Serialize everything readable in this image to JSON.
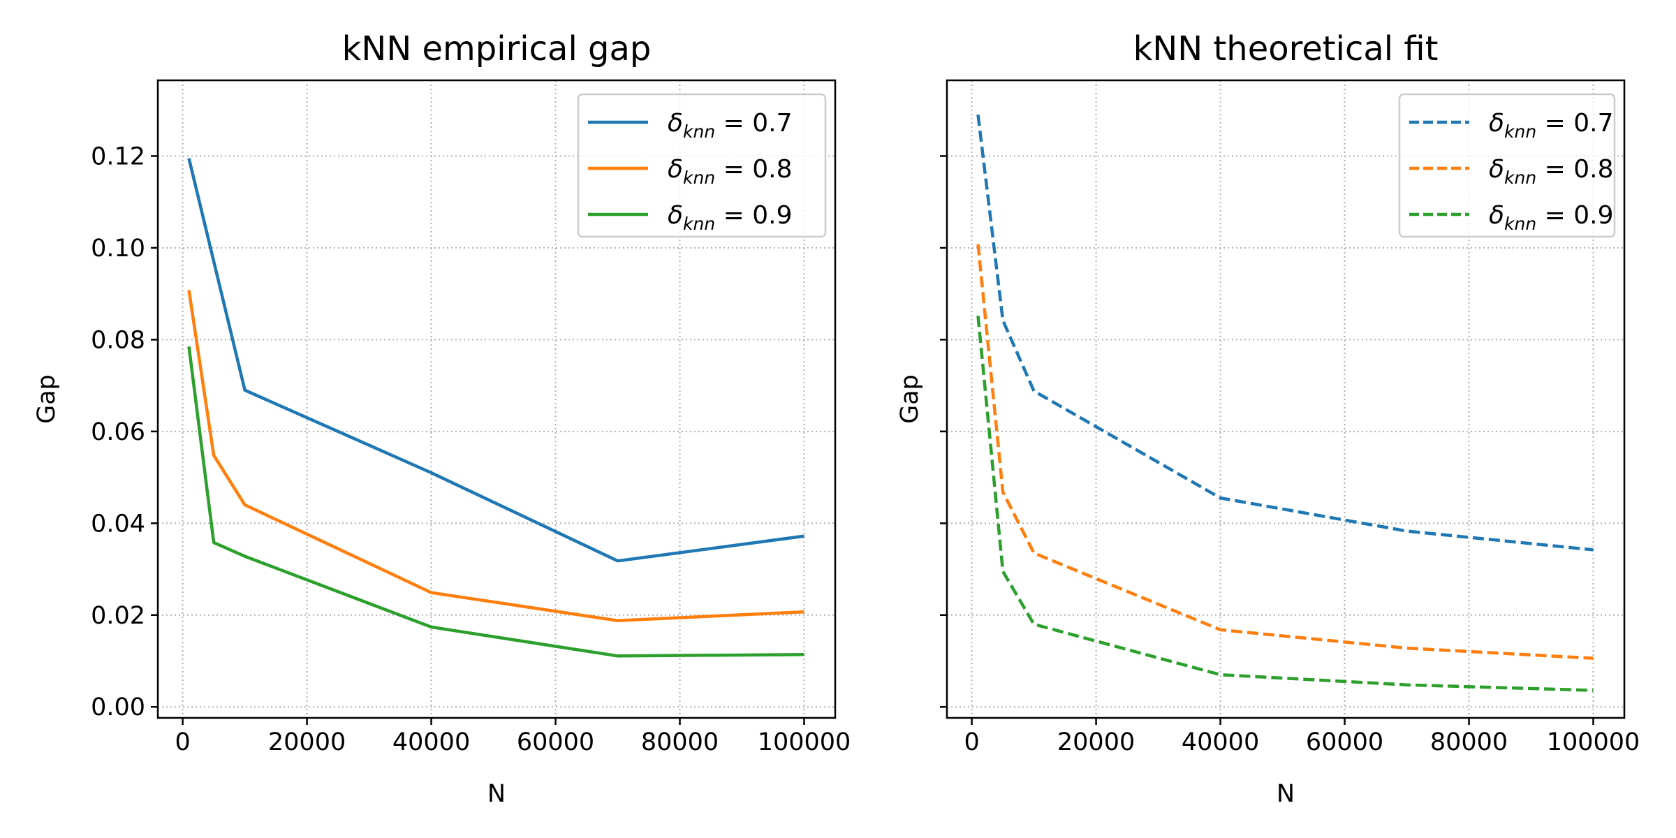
{
  "chart_data": [
    {
      "type": "line",
      "title": "kNN empirical gap",
      "xlabel": "N",
      "ylabel": "Gap",
      "xlim": [
        -4000,
        105000
      ],
      "ylim": [
        -0.0024,
        0.1365
      ],
      "x_ticks": [
        0,
        20000,
        40000,
        60000,
        80000,
        100000
      ],
      "y_ticks": [
        0.0,
        0.02,
        0.04,
        0.06,
        0.08,
        0.1,
        0.12
      ],
      "y_tick_labels": [
        "0.00",
        "0.02",
        "0.04",
        "0.06",
        "0.08",
        "0.10",
        "0.12"
      ],
      "show_y_tick_labels": true,
      "grid": true,
      "legend_position": "top-right",
      "line_style": "solid",
      "series": [
        {
          "name": "δknn = 0.7",
          "legend_symbol": "δ",
          "legend_sub": "knn",
          "legend_value": " = 0.7",
          "color": "#1f77b4",
          "x": [
            1000,
            10000,
            40000,
            70000,
            100000
          ],
          "y": [
            0.1195,
            0.069,
            0.051,
            0.0318,
            0.0372
          ]
        },
        {
          "name": "δknn = 0.8",
          "legend_symbol": "δ",
          "legend_sub": "knn",
          "legend_value": " = 0.8",
          "color": "#ff7f0e",
          "x": [
            1000,
            5000,
            10000,
            40000,
            70000,
            100000
          ],
          "y": [
            0.0908,
            0.0548,
            0.044,
            0.0249,
            0.0188,
            0.0207
          ]
        },
        {
          "name": "δknn = 0.9",
          "legend_symbol": "δ",
          "legend_sub": "knn",
          "legend_value": " = 0.9",
          "color": "#2ca02c",
          "x": [
            1000,
            5000,
            10000,
            40000,
            70000,
            100000
          ],
          "y": [
            0.0785,
            0.0358,
            0.0328,
            0.0174,
            0.0111,
            0.0114
          ]
        }
      ]
    },
    {
      "type": "line",
      "title": "kNN theoretical fit",
      "xlabel": "N",
      "ylabel": "Gap",
      "xlim": [
        -4000,
        105000
      ],
      "ylim": [
        -0.0024,
        0.1365
      ],
      "x_ticks": [
        0,
        20000,
        40000,
        60000,
        80000,
        100000
      ],
      "y_ticks": [
        0.0,
        0.02,
        0.04,
        0.06,
        0.08,
        0.1,
        0.12
      ],
      "y_tick_labels": [
        "0.00",
        "0.02",
        "0.04",
        "0.06",
        "0.08",
        "0.10",
        "0.12"
      ],
      "show_y_tick_labels": false,
      "grid": true,
      "legend_position": "top-right",
      "line_style": "dashed",
      "series": [
        {
          "name": "δknn = 0.7",
          "legend_symbol": "δ",
          "legend_sub": "knn",
          "legend_value": " = 0.7",
          "color": "#1f77b4",
          "x": [
            1000,
            5000,
            10000,
            40000,
            70000,
            100000
          ],
          "y": [
            0.129,
            0.0842,
            0.0688,
            0.0455,
            0.0383,
            0.0342
          ]
        },
        {
          "name": "δknn = 0.8",
          "legend_symbol": "δ",
          "legend_sub": "knn",
          "legend_value": " = 0.8",
          "color": "#ff7f0e",
          "x": [
            1000,
            5000,
            10000,
            40000,
            70000,
            100000
          ],
          "y": [
            0.1008,
            0.0468,
            0.0335,
            0.0168,
            0.0128,
            0.0106
          ]
        },
        {
          "name": "δknn = 0.9",
          "legend_symbol": "δ",
          "legend_sub": "knn",
          "legend_value": " = 0.9",
          "color": "#2ca02c",
          "x": [
            1000,
            5000,
            10000,
            40000,
            70000,
            100000
          ],
          "y": [
            0.0852,
            0.0295,
            0.018,
            0.007,
            0.0048,
            0.0036
          ]
        }
      ]
    }
  ]
}
